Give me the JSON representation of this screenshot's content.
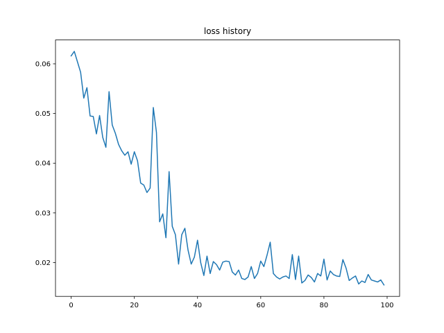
{
  "chart_data": {
    "type": "line",
    "title": "loss history",
    "xlabel": "",
    "ylabel": "",
    "xlim": [
      -4.95,
      103.95
    ],
    "ylim": [
      0.0132,
      0.0648
    ],
    "xticks": [
      0,
      20,
      40,
      60,
      80,
      100
    ],
    "yticks": [
      0.02,
      0.03,
      0.04,
      0.05,
      0.06
    ],
    "xtick_labels": [
      "0",
      "20",
      "40",
      "60",
      "80",
      "100"
    ],
    "ytick_labels": [
      "0.02",
      "0.03",
      "0.04",
      "0.05",
      "0.06"
    ],
    "grid": false,
    "series": [
      {
        "color": "#1f77b4",
        "x": [
          0,
          1,
          2,
          3,
          4,
          5,
          6,
          7,
          8,
          9,
          10,
          11,
          12,
          13,
          14,
          15,
          16,
          17,
          18,
          19,
          20,
          21,
          22,
          23,
          24,
          25,
          26,
          27,
          28,
          29,
          30,
          31,
          32,
          33,
          34,
          35,
          36,
          37,
          38,
          39,
          40,
          41,
          42,
          43,
          44,
          45,
          46,
          47,
          48,
          49,
          50,
          51,
          52,
          53,
          54,
          55,
          56,
          57,
          58,
          59,
          60,
          61,
          62,
          63,
          64,
          65,
          66,
          67,
          68,
          69,
          70,
          71,
          72,
          73,
          74,
          75,
          76,
          77,
          78,
          79,
          80,
          81,
          82,
          83,
          84,
          85,
          86,
          87,
          88,
          89,
          90,
          91,
          92,
          93,
          94,
          95,
          96,
          97,
          98,
          99
        ],
        "values": [
          0.0616,
          0.0625,
          0.0604,
          0.0583,
          0.0531,
          0.0552,
          0.0495,
          0.0494,
          0.0459,
          0.0496,
          0.0452,
          0.0432,
          0.0544,
          0.0477,
          0.046,
          0.0438,
          0.0425,
          0.0416,
          0.0423,
          0.0398,
          0.0423,
          0.0405,
          0.036,
          0.0356,
          0.0341,
          0.035,
          0.0512,
          0.0462,
          0.0282,
          0.0298,
          0.025,
          0.0383,
          0.0273,
          0.0256,
          0.0197,
          0.0256,
          0.0269,
          0.0225,
          0.0197,
          0.0211,
          0.0245,
          0.02,
          0.0174,
          0.0213,
          0.0178,
          0.0202,
          0.0196,
          0.0185,
          0.0201,
          0.0203,
          0.0202,
          0.0181,
          0.0175,
          0.0185,
          0.0168,
          0.0166,
          0.0171,
          0.0192,
          0.0168,
          0.0178,
          0.0203,
          0.0192,
          0.0215,
          0.0241,
          0.0178,
          0.0171,
          0.0167,
          0.0171,
          0.0173,
          0.0168,
          0.0216,
          0.0166,
          0.0213,
          0.0159,
          0.0164,
          0.0175,
          0.017,
          0.0161,
          0.0178,
          0.0173,
          0.0207,
          0.0165,
          0.0183,
          0.0176,
          0.0173,
          0.0172,
          0.0206,
          0.0189,
          0.0164,
          0.0169,
          0.0173,
          0.0157,
          0.0163,
          0.016,
          0.0176,
          0.0165,
          0.0163,
          0.0161,
          0.0165,
          0.0155
        ]
      }
    ]
  }
}
